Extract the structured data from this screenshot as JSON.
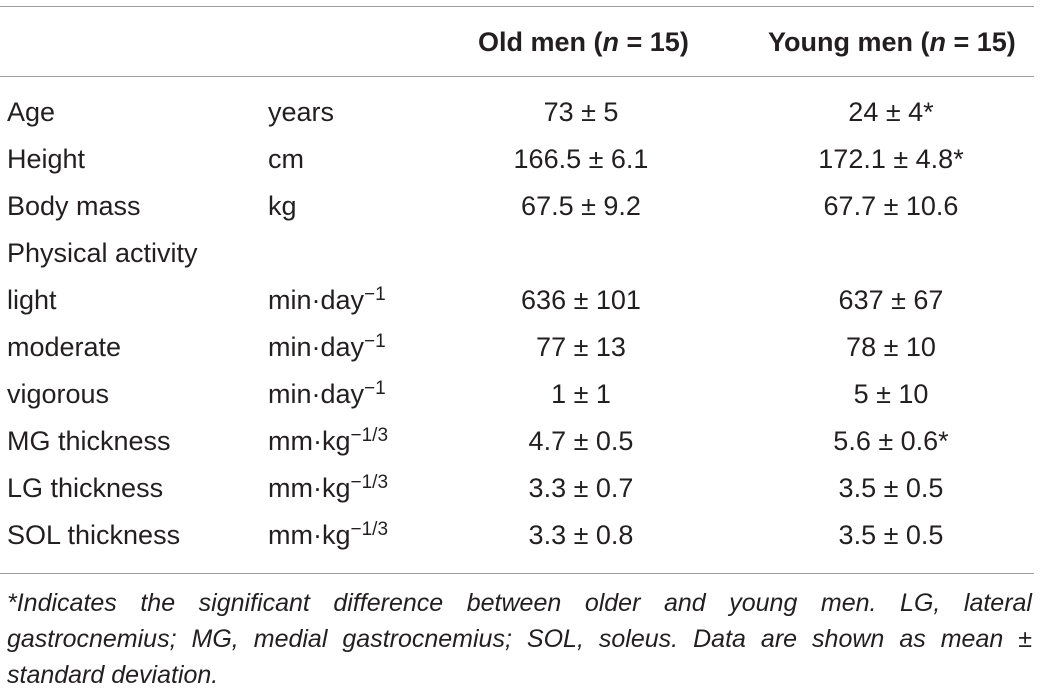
{
  "header": {
    "col1": "",
    "col2": "",
    "old_label": "Old men (",
    "old_n": "n",
    "old_suffix": " = 15)",
    "young_label": "Young men (",
    "young_n": "n",
    "young_suffix": " = 15)"
  },
  "rows": [
    {
      "label": "Age",
      "unit": "years",
      "old": "73 ± 5",
      "young": "24 ± 4*"
    },
    {
      "label": "Height",
      "unit": "cm",
      "old": "166.5 ± 6.1",
      "young": "172.1 ± 4.8*"
    },
    {
      "label": "Body mass",
      "unit": "kg",
      "old": "67.5 ± 9.2",
      "young": "67.7 ± 10.6"
    },
    {
      "label": "Physical activity",
      "unit": "",
      "old": "",
      "young": ""
    },
    {
      "label": "light",
      "unit": "min·day−1",
      "old": "636 ± 101",
      "young": "637 ± 67"
    },
    {
      "label": "moderate",
      "unit": "min·day−1",
      "old": "77 ± 13",
      "young": "78 ± 10"
    },
    {
      "label": "vigorous",
      "unit": "min·day−1",
      "old": "1 ± 1",
      "young": "5 ± 10"
    },
    {
      "label": "MG thickness",
      "unit": "mm·kg−1/3",
      "old": "4.7 ± 0.5",
      "young": "5.6 ± 0.6*"
    },
    {
      "label": "LG thickness",
      "unit": "mm·kg−1/3",
      "old": "3.3 ± 0.7",
      "young": "3.5 ± 0.5"
    },
    {
      "label": "SOL thickness",
      "unit": "mm·kg−1/3",
      "old": "3.3 ± 0.8",
      "young": "3.5 ± 0.5"
    }
  ],
  "footnote": "*Indicates the significant difference between older and young men. LG, lateral gastrocnemius; MG, medial gastrocnemius; SOL, soleus. Data are shown as mean ± standard deviation."
}
